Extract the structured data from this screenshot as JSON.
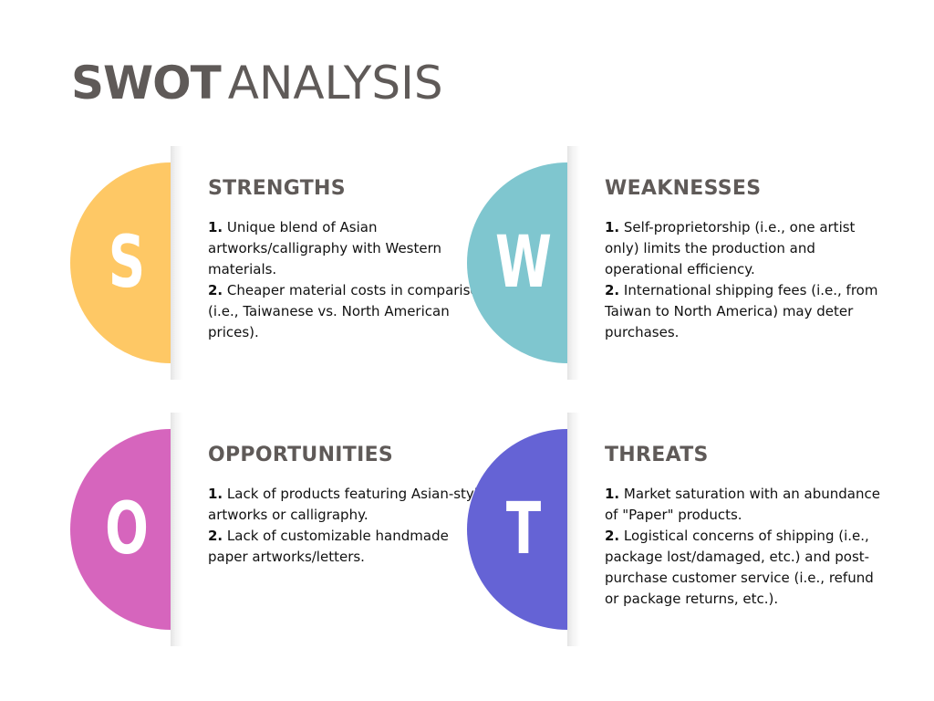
{
  "title": {
    "bold": "SWOT",
    "light": "ANALYSIS"
  },
  "quadrants": [
    {
      "letter": "S",
      "heading": "STRENGTHS",
      "color": "#fec865",
      "points": [
        {
          "num": "1.",
          "text": " Unique blend of Asian artworks/calligraphy with Western materials."
        },
        {
          "num": "2.",
          "text": " Cheaper material costs in comparison (i.e., Taiwanese vs. North American prices)."
        }
      ]
    },
    {
      "letter": "W",
      "heading": "WEAKNESSES",
      "color": "#7fc6cf",
      "points": [
        {
          "num": "1.",
          "text": " Self-proprietorship (i.e., one artist only) limits the production and operational efficiency."
        },
        {
          "num": "2.",
          "text": " International shipping fees (i.e., from Taiwan to North America) may deter purchases."
        }
      ]
    },
    {
      "letter": "O",
      "heading": "OPPORTUNITIES",
      "color": "#d665bd",
      "points": [
        {
          "num": "1.",
          "text": " Lack of products featuring Asian-style artworks or calligraphy."
        },
        {
          "num": "2.",
          "text": " Lack of customizable handmade paper artworks/letters."
        }
      ]
    },
    {
      "letter": "T",
      "heading": "THREATS",
      "color": "#6563d5",
      "points": [
        {
          "num": "1.",
          "text": " Market saturation with an abundance of \"Paper\" products."
        },
        {
          "num": "2.",
          "text": " Logistical concerns of shipping (i.e., package lost/damaged, etc.) and post-purchase customer service (i.e., refund or package returns, etc.)."
        }
      ]
    }
  ]
}
